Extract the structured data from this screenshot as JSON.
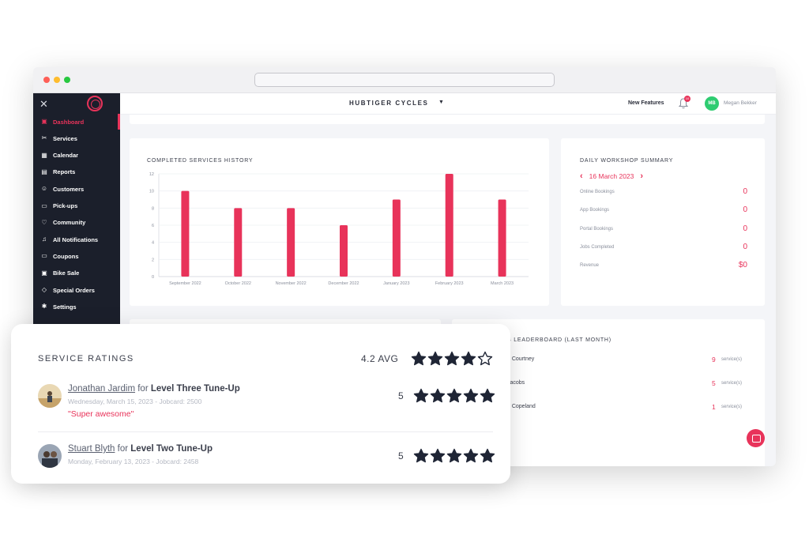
{
  "app": {
    "shop_name": "HUBTIGER CYCLES",
    "new_features": "New Features",
    "notification_count": "10",
    "user_initials": "MB",
    "user_name": "Megan Bekker"
  },
  "colors": {
    "accent": "#e8335a",
    "sidebar_bg": "#1b1f2b",
    "avatar_green": "#2ecc71",
    "star": "#1f2535"
  },
  "sidebar": {
    "close_icon": "close-icon",
    "items": [
      {
        "label": "Dashboard",
        "icon": "dashboard-icon",
        "active": true
      },
      {
        "label": "Services",
        "icon": "tools-icon",
        "active": false
      },
      {
        "label": "Calendar",
        "icon": "calendar-icon",
        "active": false
      },
      {
        "label": "Reports",
        "icon": "grid-icon",
        "active": false
      },
      {
        "label": "Customers",
        "icon": "users-icon",
        "active": false
      },
      {
        "label": "Pick-ups",
        "icon": "truck-icon",
        "active": false
      },
      {
        "label": "Community",
        "icon": "heart-icon",
        "active": false
      },
      {
        "label": "All Notifications",
        "icon": "bell-icon",
        "active": false
      },
      {
        "label": "Coupons",
        "icon": "coupon-icon",
        "active": false
      },
      {
        "label": "Bike Sale",
        "icon": "sale-icon",
        "active": false
      },
      {
        "label": "Special Orders",
        "icon": "tag-icon",
        "active": false
      },
      {
        "label": "Settings",
        "icon": "gear-icon",
        "active": false
      }
    ]
  },
  "chart_data": {
    "type": "bar",
    "title": "COMPLETED SERVICES HISTORY",
    "categories": [
      "September 2022",
      "October 2022",
      "November 2022",
      "December 2022",
      "January 2023",
      "February 2023",
      "March 2023"
    ],
    "values": [
      10,
      8,
      8,
      6,
      9,
      12,
      9
    ],
    "ylim": [
      0,
      12
    ],
    "yticks": [
      0,
      2,
      4,
      6,
      8,
      10,
      12
    ],
    "grid": true,
    "color": "#e8335a"
  },
  "summary": {
    "title": "DAILY WORKSHOP SUMMARY",
    "date": "16 March 2023",
    "rows": [
      {
        "label": "Online Bookings",
        "value": "0"
      },
      {
        "label": "App Bookings",
        "value": "0"
      },
      {
        "label": "Portal Bookings",
        "value": "0"
      },
      {
        "label": "Jobs Completed",
        "value": "0"
      },
      {
        "label": "Revenue",
        "value": "$0"
      }
    ]
  },
  "leaderboard": {
    "title": "S LEADERBOARD (LAST MONTH)",
    "rows": [
      {
        "name": "e Courtney",
        "count": "9",
        "unit": "service(s)"
      },
      {
        "name": "Jacobs",
        "count": "5",
        "unit": "service(s)"
      },
      {
        "name": "d Copeland",
        "count": "1",
        "unit": "service(s)"
      }
    ]
  },
  "ratings": {
    "title": "SERVICE RATINGS",
    "average": "4.2 AVG",
    "average_value": 4.2,
    "reviews": [
      {
        "name": "Jonathan Jardim",
        "for": "for",
        "service": "Level Three Tune-Up",
        "meta": "Wednesday, March 15, 2023 - Jobcard: 2500",
        "quote": "\"Super awesome\"",
        "score": "5",
        "stars": 5
      },
      {
        "name": "Stuart Blyth",
        "for": "for",
        "service": "Level Two Tune-Up",
        "meta": "Monday, February 13, 2023 - Jobcard: 2458",
        "quote": "",
        "score": "5",
        "stars": 5
      }
    ]
  }
}
